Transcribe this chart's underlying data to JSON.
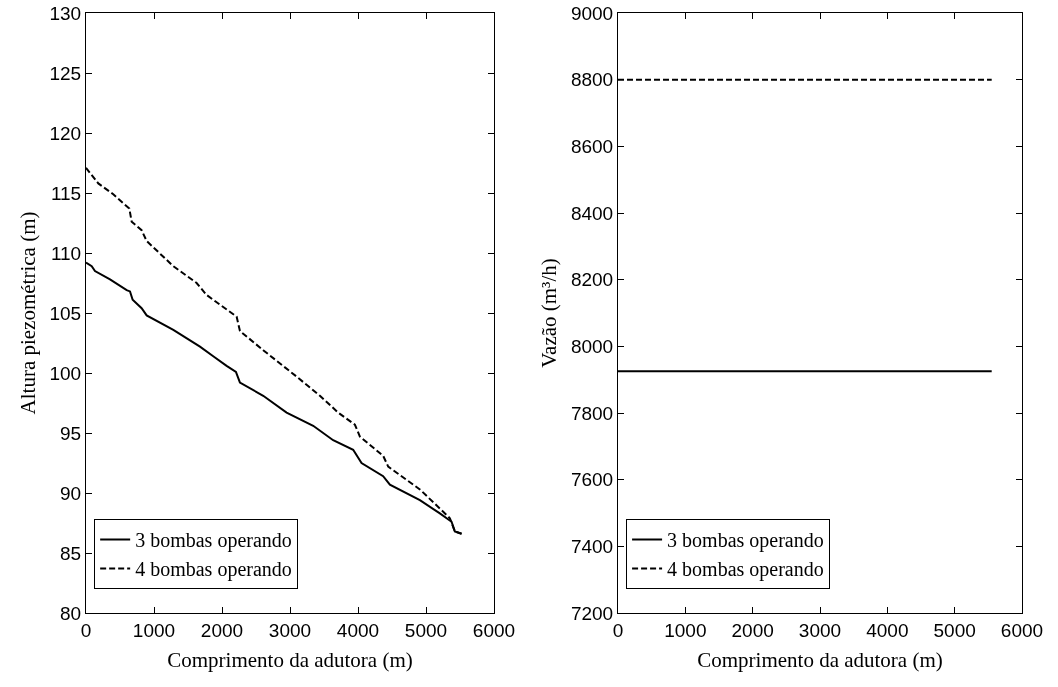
{
  "chart_data": [
    {
      "type": "line",
      "xlabel": "Comprimento da adutora (m)",
      "ylabel": "Altura piezométrica (m)",
      "xlim": [
        0,
        6000
      ],
      "xticks": [
        0,
        1000,
        2000,
        3000,
        4000,
        5000,
        6000
      ],
      "ylim": [
        80,
        130
      ],
      "yticks": [
        80,
        85,
        90,
        95,
        100,
        105,
        110,
        115,
        120,
        125,
        130
      ],
      "grid": false,
      "legend": "bottom left",
      "series": [
        {
          "name": "3 bombas operando",
          "color": "#000000",
          "line_style": "solid",
          "x": [
            0,
            84,
            132,
            353,
            598,
            647,
            686,
            818,
            892,
            1284,
            1676,
            1871,
            2068,
            2205,
            2264,
            2606,
            2950,
            3341,
            3635,
            3929,
            4052,
            4370,
            4469,
            4910,
            5204,
            5376,
            5424,
            5523
          ],
          "values": [
            109.2,
            108.9,
            108.5,
            107.8,
            106.9,
            106.8,
            106.1,
            105.4,
            104.8,
            103.6,
            102.2,
            101.4,
            100.6,
            100.1,
            99.2,
            98.1,
            96.7,
            95.6,
            94.4,
            93.6,
            92.5,
            91.4,
            90.7,
            89.4,
            88.3,
            87.6,
            86.8,
            86.6
          ]
        },
        {
          "name": "4 bombas operando",
          "color": "#000000",
          "line_style": "dashed",
          "x": [
            0,
            181,
            401,
            637,
            672,
            818,
            892,
            1284,
            1627,
            1774,
            2215,
            2264,
            2606,
            3097,
            3440,
            3709,
            3954,
            4028,
            4370,
            4444,
            4910,
            5351,
            5424,
            5523
          ],
          "values": [
            117.1,
            115.8,
            114.9,
            113.7,
            112.6,
            111.9,
            111.0,
            108.9,
            107.5,
            106.5,
            104.7,
            103.5,
            101.9,
            99.7,
            98.1,
            96.7,
            95.7,
            94.7,
            93.1,
            92.2,
            90.3,
            87.9,
            86.8,
            86.6
          ]
        }
      ]
    },
    {
      "type": "line",
      "xlabel": "Comprimento da adutora (m)",
      "ylabel": "Vazão (m³/h)",
      "xlim": [
        0,
        6000
      ],
      "xticks": [
        0,
        1000,
        2000,
        3000,
        4000,
        5000,
        6000
      ],
      "ylim": [
        7200,
        9000
      ],
      "yticks": [
        7200,
        7400,
        7600,
        7800,
        8000,
        8200,
        8400,
        8600,
        8800,
        9000
      ],
      "grid": false,
      "legend": "bottom left",
      "series": [
        {
          "name": "3 bombas operando",
          "color": "#000000",
          "line_style": "solid",
          "x": [
            0,
            5550
          ],
          "values": [
            7925,
            7925
          ]
        },
        {
          "name": "4 bombas operando",
          "color": "#000000",
          "line_style": "dashed",
          "x": [
            0,
            5550
          ],
          "values": [
            8800,
            8800
          ]
        }
      ]
    }
  ]
}
